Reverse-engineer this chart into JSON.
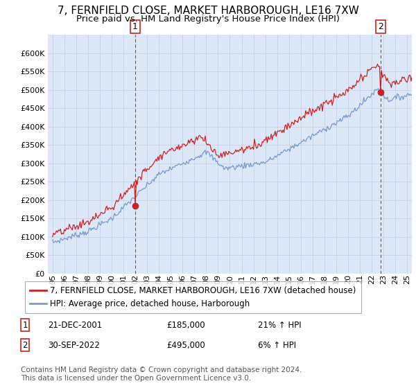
{
  "title": "7, FERNFIELD CLOSE, MARKET HARBOROUGH, LE16 7XW",
  "subtitle": "Price paid vs. HM Land Registry's House Price Index (HPI)",
  "ylim": [
    0,
    650000
  ],
  "yticks": [
    0,
    50000,
    100000,
    150000,
    200000,
    250000,
    300000,
    350000,
    400000,
    450000,
    500000,
    550000,
    600000
  ],
  "xlim_start": 1994.6,
  "xlim_end": 2025.4,
  "grid_color": "#c8d4e8",
  "bg_color": "#ffffff",
  "plot_bg_color": "#dce8f8",
  "hpi_color": "#7799cc",
  "price_color": "#cc2222",
  "transaction1": {
    "date": "21-DEC-2001",
    "price": 185000,
    "label": "1",
    "pct": "21% ↑ HPI",
    "x": 2001.97
  },
  "transaction2": {
    "date": "30-SEP-2022",
    "price": 495000,
    "label": "2",
    "pct": "6% ↑ HPI",
    "x": 2022.75
  },
  "legend_line1": "7, FERNFIELD CLOSE, MARKET HARBOROUGH, LE16 7XW (detached house)",
  "legend_line2": "HPI: Average price, detached house, Harborough",
  "footer": "Contains HM Land Registry data © Crown copyright and database right 2024.\nThis data is licensed under the Open Government Licence v3.0.",
  "title_fontsize": 11,
  "subtitle_fontsize": 9.5,
  "axis_fontsize": 8,
  "legend_fontsize": 8.5,
  "xtick_labels": [
    "95",
    "96",
    "97",
    "98",
    "99",
    "00",
    "01",
    "02",
    "03",
    "04",
    "05",
    "06",
    "07",
    "08",
    "09",
    "10",
    "11",
    "12",
    "13",
    "14",
    "15",
    "16",
    "17",
    "18",
    "19",
    "20",
    "21",
    "22",
    "23",
    "24",
    "25"
  ]
}
